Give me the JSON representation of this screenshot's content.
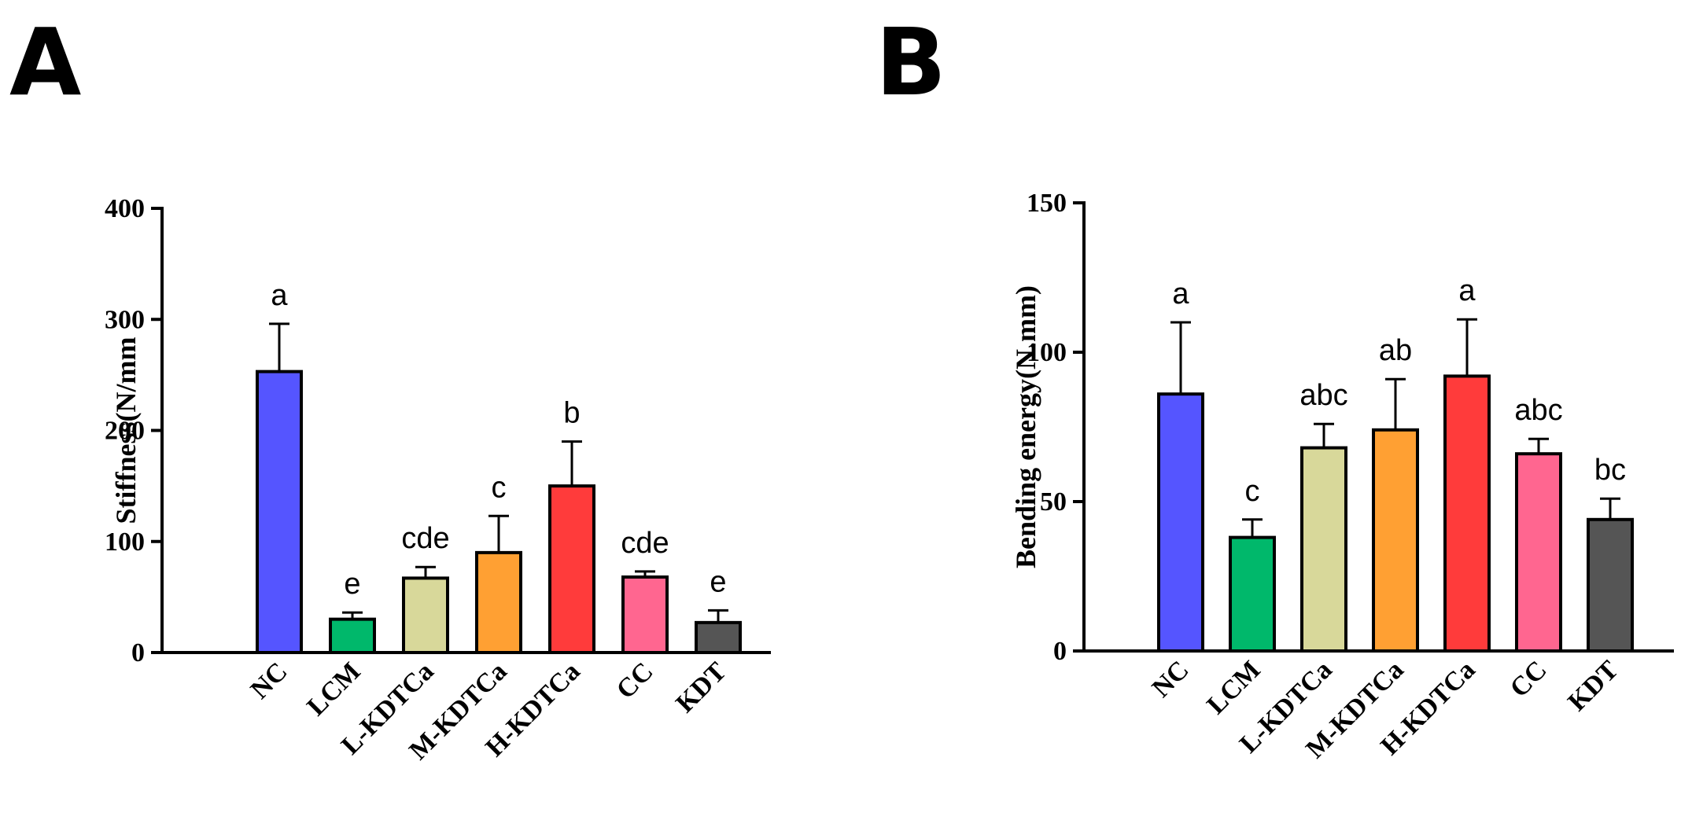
{
  "chart_data": [
    {
      "panel": "A",
      "type": "bar",
      "title": "",
      "xlabel": "",
      "ylabel": "Stiffness(N/mm",
      "ylim": [
        0,
        400
      ],
      "yticks": [
        0,
        100,
        200,
        300,
        400
      ],
      "categories": [
        "NC",
        "LCM",
        "L-KDTCa",
        "M-KDTCa",
        "H-KDTCa",
        "CC",
        "KDT"
      ],
      "values": [
        253,
        30,
        67,
        90,
        150,
        68,
        27
      ],
      "errors": [
        43,
        6,
        10,
        33,
        40,
        5,
        11
      ],
      "significance": [
        "a",
        "e",
        "cde",
        "c",
        "b",
        "cde",
        "e"
      ],
      "colors": [
        "#5555ff",
        "#00b86b",
        "#d8d89a",
        "#ffa033",
        "#ff3b3b",
        "#ff6690",
        "#555555"
      ]
    },
    {
      "panel": "B",
      "type": "bar",
      "title": "",
      "xlabel": "",
      "ylabel": "Bending energy(N.mm)",
      "ylim": [
        0,
        150
      ],
      "yticks": [
        0,
        50,
        100,
        150
      ],
      "categories": [
        "NC",
        "LCM",
        "L-KDTCa",
        "M-KDTCa",
        "H-KDTCa",
        "CC",
        "KDT"
      ],
      "values": [
        86,
        38,
        68,
        74,
        92,
        66,
        44
      ],
      "errors": [
        24,
        6,
        8,
        17,
        19,
        5,
        7
      ],
      "significance": [
        "a",
        "c",
        "abc",
        "ab",
        "a",
        "abc",
        "bc"
      ],
      "colors": [
        "#5555ff",
        "#00b86b",
        "#d8d89a",
        "#ffa033",
        "#ff3b3b",
        "#ff6690",
        "#555555"
      ]
    }
  ]
}
